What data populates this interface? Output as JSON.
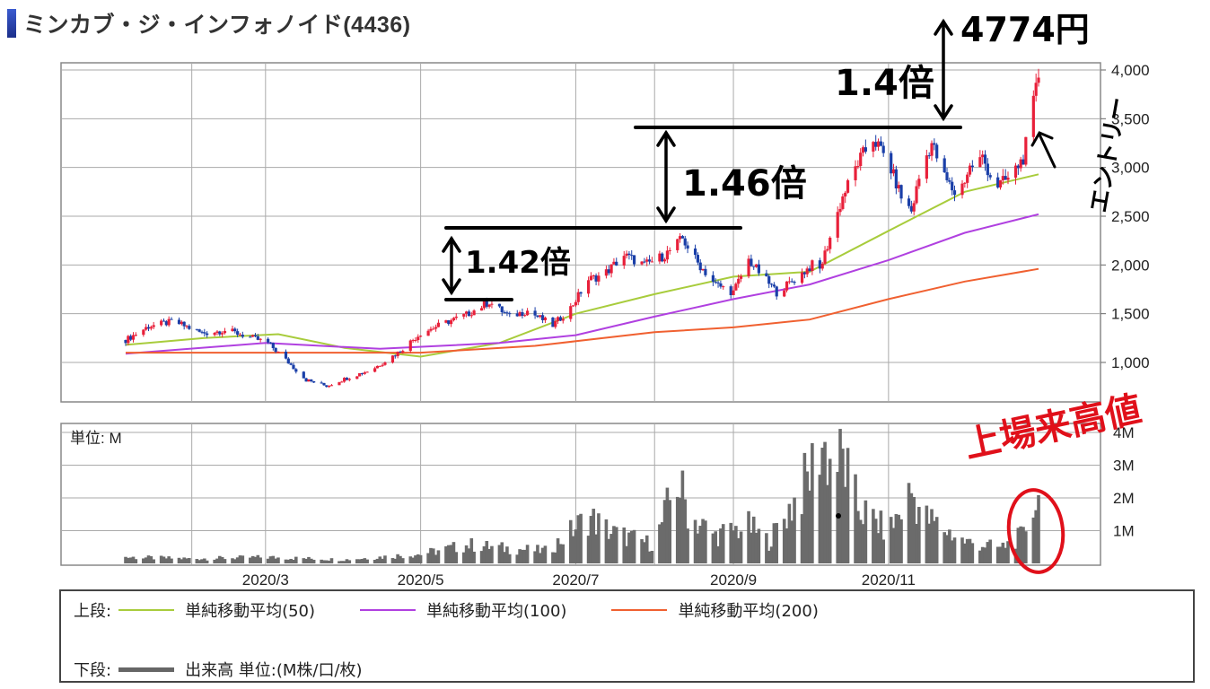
{
  "title": "ミンカブ・ジ・インフォノイド(4436)",
  "colors": {
    "up": "#e8203a",
    "down": "#1a3fa8",
    "ma50": "#a8cc3c",
    "ma100": "#b040e0",
    "ma200": "#f06030",
    "volume": "#6b6b6b",
    "annotation": "#000000",
    "annotation_red": "#e0101a"
  },
  "price_axis_labels": [
    "4,000",
    "3,500",
    "3,000",
    "2,500",
    "2,000",
    "1,500",
    "1,000"
  ],
  "volume_axis_labels": [
    "4M",
    "3M",
    "2M",
    "1M"
  ],
  "volume_unit_label": "単位: M",
  "date_labels": [
    "2020/3",
    "2020/5",
    "2020/7",
    "2020/9",
    "2020/11"
  ],
  "legend": {
    "upper_label": "上段:",
    "lower_label": "下段:",
    "ma50": "単純移動平均(50)",
    "ma100": "単純移動平均(100)",
    "ma200": "単純移動平均(200)",
    "volume": "出来高 単位:(M株/口/枚)"
  },
  "annotations": {
    "ratio1": "1.42倍",
    "ratio2": "1.46倍",
    "ratio3": "1.4倍",
    "price_target": "4774円",
    "entry": "エントリー",
    "record_high": "上場来高値"
  },
  "chart_data": [
    {
      "type": "candlestick",
      "title": "",
      "ylim": [
        600,
        4100
      ],
      "y_ticks": [
        1000,
        1500,
        2000,
        2500,
        3000,
        3500,
        4000
      ],
      "x_ticks": [
        "2020/3",
        "2020/5",
        "2020/7",
        "2020/9",
        "2020/11"
      ],
      "x_range": [
        "2020-01-06",
        "2020-12-30"
      ],
      "grid": true,
      "close_series": {
        "name": "",
        "points": [
          [
            "2020-01-06",
            1230
          ],
          [
            "2020-01-15",
            1370
          ],
          [
            "2020-01-25",
            1420
          ],
          [
            "2020-02-05",
            1300
          ],
          [
            "2020-02-15",
            1330
          ],
          [
            "2020-02-25",
            1250
          ],
          [
            "2020-03-02",
            1200
          ],
          [
            "2020-03-10",
            1000
          ],
          [
            "2020-03-17",
            820
          ],
          [
            "2020-03-25",
            760
          ],
          [
            "2020-04-02",
            840
          ],
          [
            "2020-04-12",
            930
          ],
          [
            "2020-04-22",
            1100
          ],
          [
            "2020-05-01",
            1300
          ],
          [
            "2020-05-10",
            1400
          ],
          [
            "2020-05-19",
            1490
          ],
          [
            "2020-05-28",
            1620
          ],
          [
            "2020-06-05",
            1470
          ],
          [
            "2020-06-12",
            1530
          ],
          [
            "2020-06-22",
            1380
          ],
          [
            "2020-06-29",
            1560
          ],
          [
            "2020-07-06",
            1850
          ],
          [
            "2020-07-12",
            1900
          ],
          [
            "2020-07-20",
            2100
          ],
          [
            "2020-07-28",
            2000
          ],
          [
            "2020-08-05",
            2100
          ],
          [
            "2020-08-12",
            2270
          ],
          [
            "2020-08-18",
            2020
          ],
          [
            "2020-08-25",
            1800
          ],
          [
            "2020-09-01",
            1720
          ],
          [
            "2020-09-07",
            2050
          ],
          [
            "2020-09-12",
            1900
          ],
          [
            "2020-09-18",
            1720
          ],
          [
            "2020-09-25",
            1850
          ],
          [
            "2020-10-02",
            2000
          ],
          [
            "2020-10-05",
            1950
          ],
          [
            "2020-10-08",
            2200
          ],
          [
            "2020-10-14",
            2700
          ],
          [
            "2020-10-20",
            3050
          ],
          [
            "2020-10-26",
            3300
          ],
          [
            "2020-11-01",
            3050
          ],
          [
            "2020-11-06",
            2700
          ],
          [
            "2020-11-10",
            2550
          ],
          [
            "2020-11-14",
            3000
          ],
          [
            "2020-11-18",
            3250
          ],
          [
            "2020-11-23",
            2900
          ],
          [
            "2020-11-28",
            2700
          ],
          [
            "2020-12-03",
            3000
          ],
          [
            "2020-12-08",
            3100
          ],
          [
            "2020-12-13",
            2800
          ],
          [
            "2020-12-19",
            2900
          ],
          [
            "2020-12-24",
            3100
          ],
          [
            "2020-12-27",
            3500
          ],
          [
            "2020-12-30",
            3950
          ]
        ]
      },
      "moving_averages": [
        {
          "name": "単純移動平均(50)",
          "color": "#a8cc3c",
          "points": [
            [
              "2020-01-06",
              1180
            ],
            [
              "2020-02-06",
              1250
            ],
            [
              "2020-03-06",
              1290
            ],
            [
              "2020-04-01",
              1150
            ],
            [
              "2020-05-01",
              1060
            ],
            [
              "2020-06-01",
              1200
            ],
            [
              "2020-07-01",
              1500
            ],
            [
              "2020-08-01",
              1700
            ],
            [
              "2020-09-01",
              1880
            ],
            [
              "2020-10-01",
              1930
            ],
            [
              "2020-11-01",
              2350
            ],
            [
              "2020-12-01",
              2750
            ],
            [
              "2020-12-30",
              2930
            ]
          ]
        },
        {
          "name": "単純移動平均(100)",
          "color": "#b040e0",
          "points": [
            [
              "2020-01-06",
              1090
            ],
            [
              "2020-03-01",
              1200
            ],
            [
              "2020-04-15",
              1140
            ],
            [
              "2020-06-01",
              1200
            ],
            [
              "2020-07-01",
              1280
            ],
            [
              "2020-08-01",
              1470
            ],
            [
              "2020-09-01",
              1650
            ],
            [
              "2020-10-01",
              1800
            ],
            [
              "2020-11-01",
              2050
            ],
            [
              "2020-12-01",
              2330
            ],
            [
              "2020-12-30",
              2520
            ]
          ]
        },
        {
          "name": "単純移動平均(200)",
          "color": "#f06030",
          "points": [
            [
              "2020-01-06",
              1100
            ],
            [
              "2020-03-01",
              1100
            ],
            [
              "2020-05-01",
              1100
            ],
            [
              "2020-06-15",
              1170
            ],
            [
              "2020-08-01",
              1310
            ],
            [
              "2020-09-01",
              1360
            ],
            [
              "2020-10-01",
              1440
            ],
            [
              "2020-11-01",
              1650
            ],
            [
              "2020-12-01",
              1830
            ],
            [
              "2020-12-30",
              1960
            ]
          ]
        }
      ]
    },
    {
      "type": "bar",
      "title": "",
      "ylabel": "単位: M",
      "ylim": [
        0,
        4.2
      ],
      "y_ticks": [
        1,
        2,
        3,
        4
      ],
      "series": [
        {
          "name": "出来高 単位:(M株/口/枚)",
          "points": [
            [
              "2020-01-06",
              0.2
            ],
            [
              "2020-02-01",
              0.15
            ],
            [
              "2020-03-01",
              0.2
            ],
            [
              "2020-04-01",
              0.12
            ],
            [
              "2020-05-01",
              0.3
            ],
            [
              "2020-05-20",
              0.6
            ],
            [
              "2020-06-01",
              0.5
            ],
            [
              "2020-06-20",
              0.4
            ],
            [
              "2020-07-06",
              1.5
            ],
            [
              "2020-07-15",
              1.0
            ],
            [
              "2020-08-01",
              0.6
            ],
            [
              "2020-08-10",
              2.7
            ],
            [
              "2020-08-15",
              1.5
            ],
            [
              "2020-08-25",
              0.9
            ],
            [
              "2020-09-07",
              1.2
            ],
            [
              "2020-09-15",
              0.7
            ],
            [
              "2020-10-01",
              2.8
            ],
            [
              "2020-10-05",
              4.0
            ],
            [
              "2020-10-09",
              3.3
            ],
            [
              "2020-10-14",
              3.3
            ],
            [
              "2020-10-20",
              1.8
            ],
            [
              "2020-11-01",
              1.0
            ],
            [
              "2020-11-10",
              2.3
            ],
            [
              "2020-11-15",
              1.5
            ],
            [
              "2020-12-01",
              0.7
            ],
            [
              "2020-12-15",
              0.5
            ],
            [
              "2020-12-24",
              0.9
            ],
            [
              "2020-12-28",
              2.0
            ],
            [
              "2020-12-30",
              2.0
            ]
          ]
        }
      ]
    }
  ]
}
